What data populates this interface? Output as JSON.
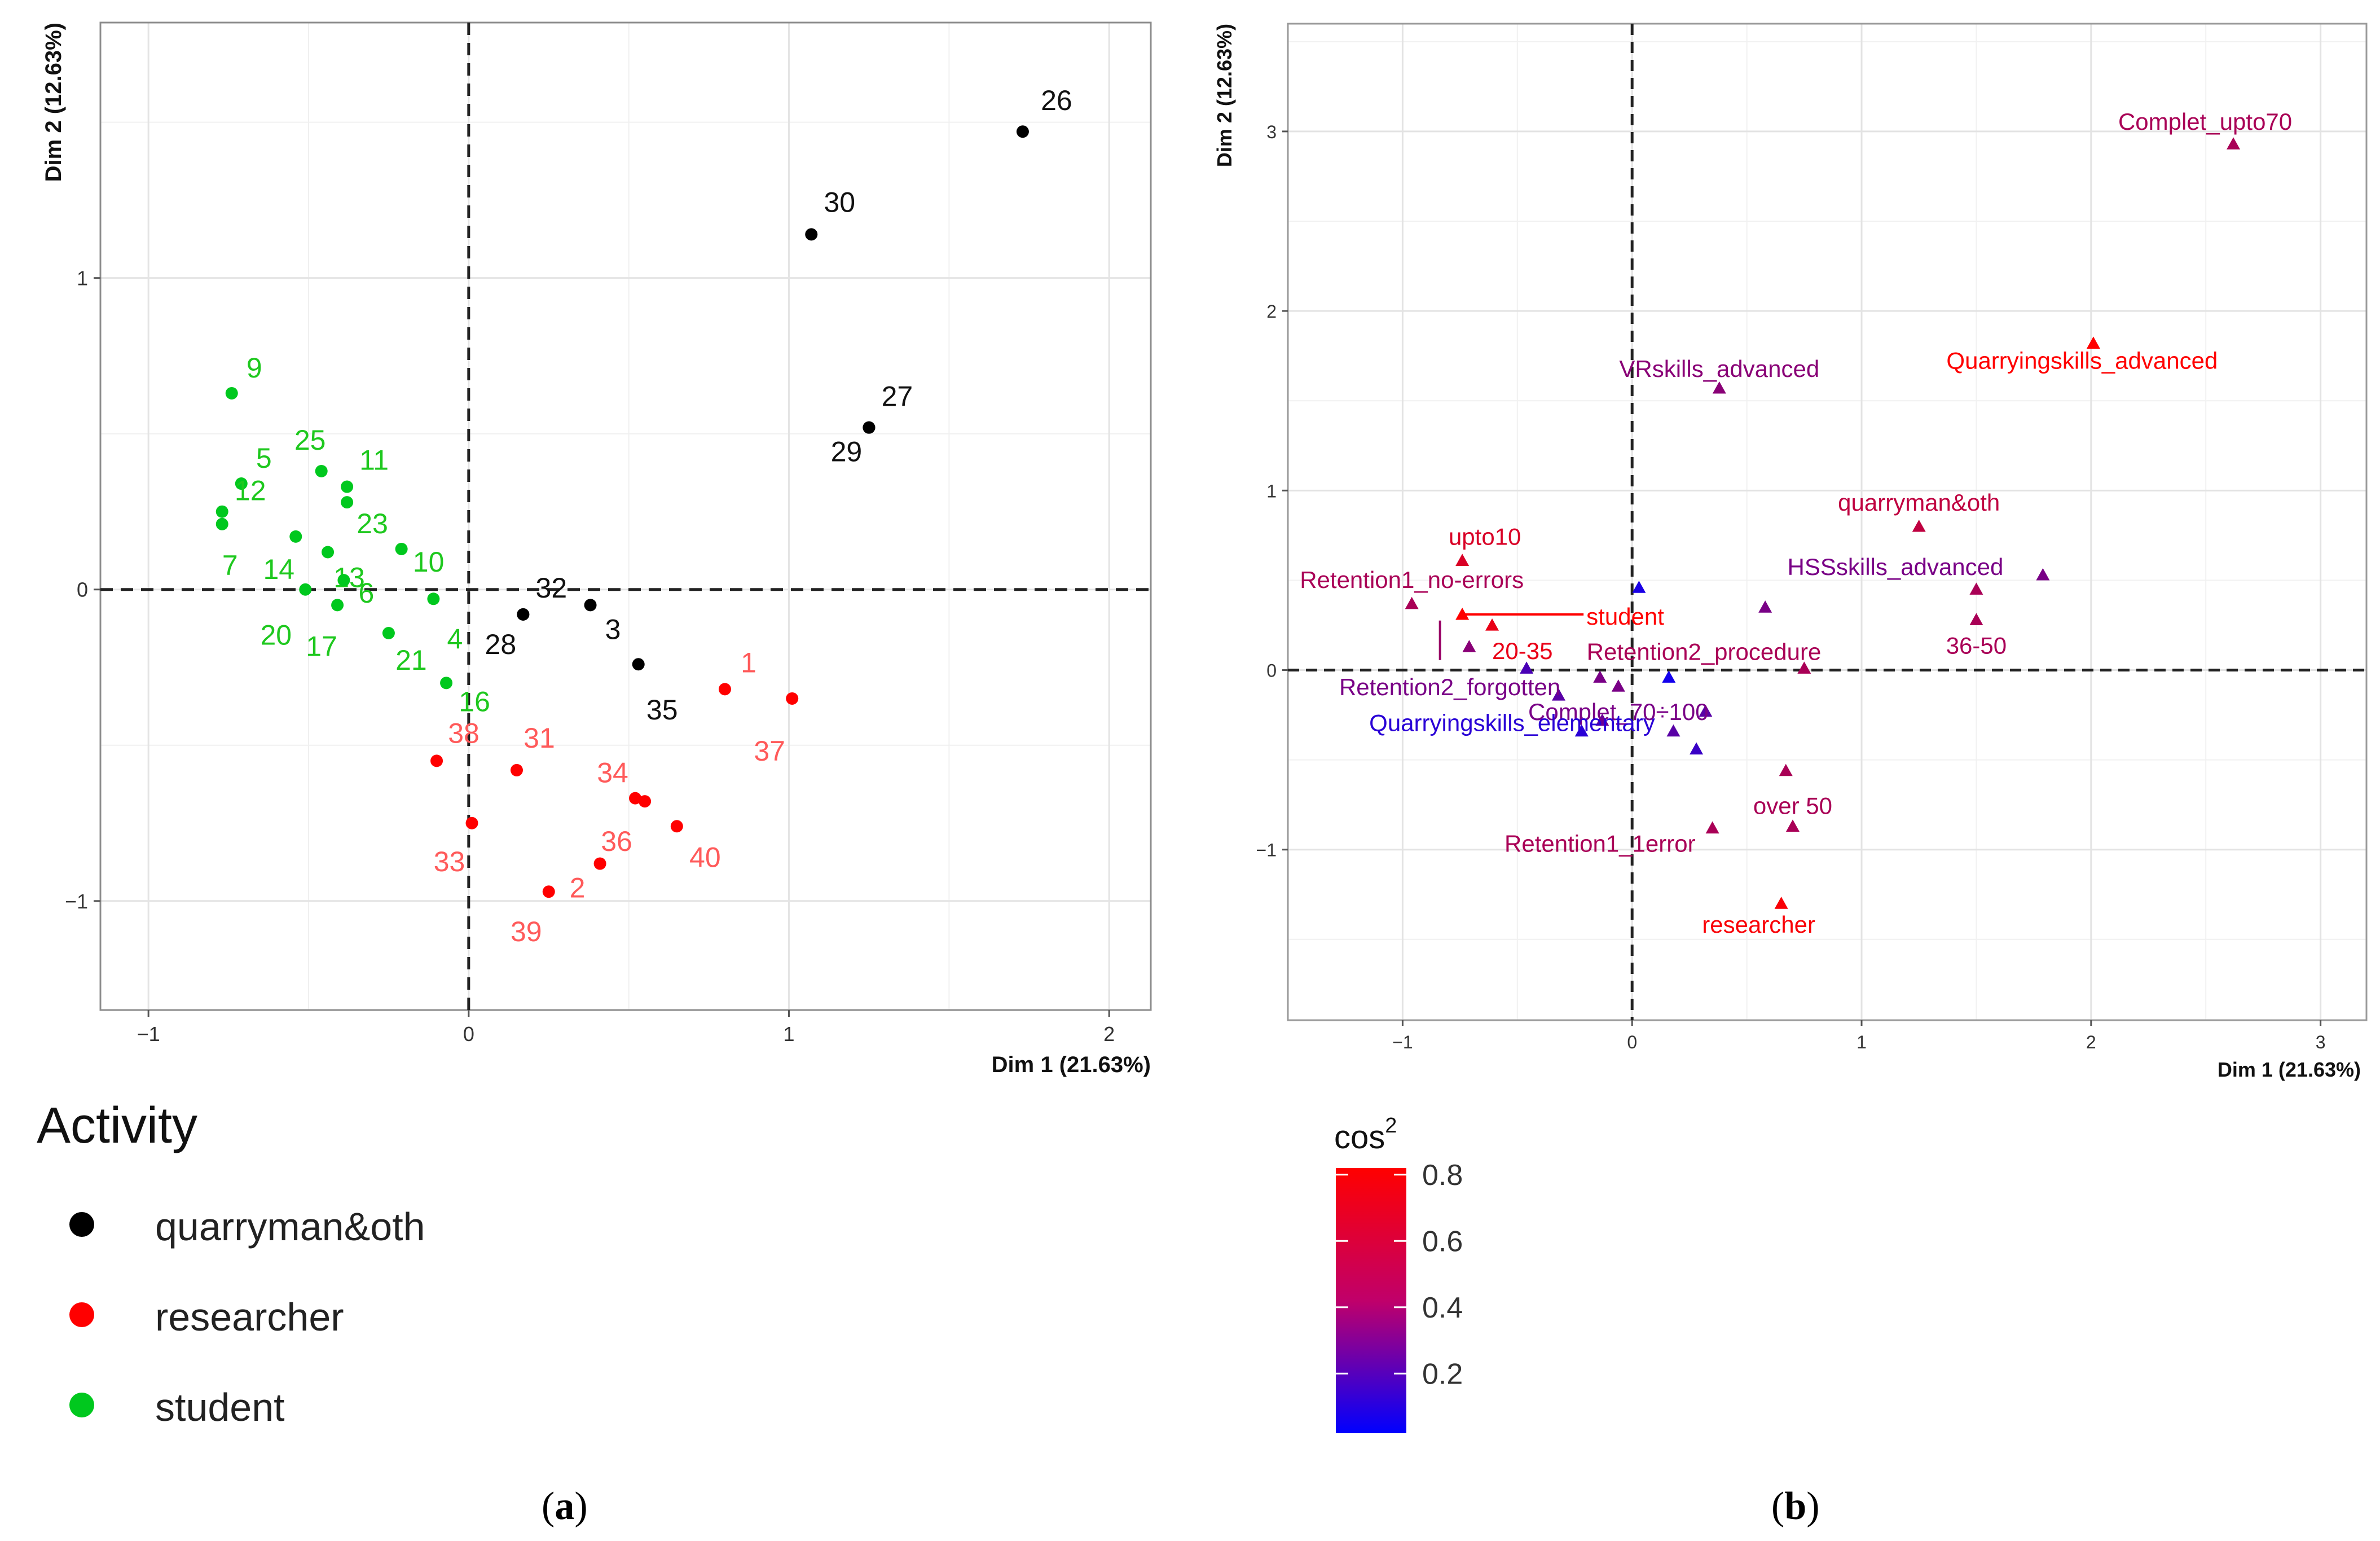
{
  "chart_data": [
    {
      "type": "scatter",
      "panel_label": "a",
      "xlabel": "Dim 1 (21.63%)",
      "ylabel": "Dim 2 (12.63%)",
      "xlim": [
        -1.15,
        2.13
      ],
      "ylim": [
        -1.35,
        1.82
      ],
      "x_ticks": [
        -1,
        0,
        1,
        2
      ],
      "y_ticks": [
        -1,
        0,
        1
      ],
      "grid": true,
      "legend_title": "Activity",
      "series": [
        {
          "name": "quarryman&oth",
          "color": "#000000",
          "points": [
            {
              "label": "26",
              "x": 1.73,
              "y": 1.47
            },
            {
              "label": "30",
              "x": 1.07,
              "y": 1.14
            },
            {
              "label": "27",
              "x": 1.25,
              "y": 0.52
            },
            {
              "label": "29",
              "x": 1.25,
              "y": 0.52
            },
            {
              "label": "32",
              "x": 0.17,
              "y": -0.08
            },
            {
              "label": "28",
              "x": 0.17,
              "y": -0.08
            },
            {
              "label": "3",
              "x": 0.38,
              "y": -0.05
            },
            {
              "label": "35",
              "x": 0.53,
              "y": -0.24
            }
          ]
        },
        {
          "name": "researcher",
          "color": "#ff0000",
          "points": [
            {
              "label": "1",
              "x": 0.8,
              "y": -0.32
            },
            {
              "label": "37",
              "x": 1.01,
              "y": -0.35
            },
            {
              "label": "38",
              "x": -0.1,
              "y": -0.55
            },
            {
              "label": "31",
              "x": 0.15,
              "y": -0.58
            },
            {
              "label": "34",
              "x": 0.52,
              "y": -0.67
            },
            {
              "label": "36",
              "x": 0.55,
              "y": -0.68
            },
            {
              "label": "40",
              "x": 0.65,
              "y": -0.76
            },
            {
              "label": "33",
              "x": 0.01,
              "y": -0.75
            },
            {
              "label": "2",
              "x": 0.41,
              "y": -0.88
            },
            {
              "label": "39",
              "x": 0.25,
              "y": -0.97
            }
          ]
        },
        {
          "name": "student",
          "color": "#00c81e",
          "points": [
            {
              "label": "9",
              "x": -0.74,
              "y": 0.63
            },
            {
              "label": "5",
              "x": -0.71,
              "y": 0.34
            },
            {
              "label": "25",
              "x": -0.46,
              "y": 0.38
            },
            {
              "label": "11",
              "x": -0.38,
              "y": 0.33
            },
            {
              "label": "12",
              "x": -0.77,
              "y": 0.25
            },
            {
              "label": "7",
              "x": -0.77,
              "y": 0.21
            },
            {
              "label": "23",
              "x": -0.38,
              "y": 0.28
            },
            {
              "label": "10",
              "x": -0.21,
              "y": 0.13
            },
            {
              "label": "14",
              "x": -0.54,
              "y": 0.17
            },
            {
              "label": "13",
              "x": -0.44,
              "y": 0.12
            },
            {
              "label": "20",
              "x": -0.51,
              "y": 0.0
            },
            {
              "label": "6",
              "x": -0.39,
              "y": 0.03
            },
            {
              "label": "17",
              "x": -0.41,
              "y": -0.05
            },
            {
              "label": "4",
              "x": -0.11,
              "y": -0.03
            },
            {
              "label": "21",
              "x": -0.25,
              "y": -0.14
            },
            {
              "label": "16",
              "x": -0.07,
              "y": -0.3
            }
          ]
        }
      ]
    },
    {
      "type": "scatter",
      "panel_label": "b",
      "xlabel": "Dim 1 (21.63%)",
      "ylabel": "Dim 2 (12.63%)",
      "xlim": [
        -1.5,
        3.2
      ],
      "ylim": [
        -1.95,
        3.6
      ],
      "x_ticks": [
        -1,
        0,
        1,
        2,
        3
      ],
      "y_ticks": [
        -1,
        0,
        1,
        2,
        3
      ],
      "grid": true,
      "legend_title": "cos",
      "legend_title_sup": "2",
      "colorbar_ticks": [
        "0.8",
        "0.6",
        "0.4",
        "0.2"
      ],
      "colorbar_range": [
        0.02,
        0.82
      ],
      "points": [
        {
          "label": "Complet_upto70",
          "x": 2.62,
          "y": 2.93,
          "cos2": 0.55
        },
        {
          "label": "Quarryingskills_advanced",
          "x": 2.01,
          "y": 1.82,
          "cos2": 0.82
        },
        {
          "label": "VRskills_advanced",
          "x": 0.38,
          "y": 1.57,
          "cos2": 0.45
        },
        {
          "label": "quarryman&oth",
          "x": 1.25,
          "y": 0.8,
          "cos2": 0.62
        },
        {
          "label": "HSSskills_advanced",
          "x": 1.79,
          "y": 0.53,
          "cos2": 0.4
        },
        {
          "label": "upto10",
          "x": -0.74,
          "y": 0.61,
          "cos2": 0.7
        },
        {
          "label": "Retention1_no-errors",
          "x": -0.96,
          "y": 0.37,
          "cos2": 0.55
        },
        {
          "label": "student",
          "x": -0.74,
          "y": 0.31,
          "cos2": 0.82
        },
        {
          "label": "20-35",
          "x": -0.61,
          "y": 0.25,
          "cos2": 0.75
        },
        {
          "label": "36-50",
          "x": 1.5,
          "y": 0.28,
          "cos2": 0.55
        },
        {
          "label": "Retention2_procedure",
          "x": 0.75,
          "y": 0.01,
          "cos2": 0.55
        },
        {
          "label": "Retention2_forgotten",
          "x": -0.14,
          "y": -0.04,
          "cos2": 0.4
        },
        {
          "label": "Complet_70÷100",
          "x": -0.06,
          "y": -0.09,
          "cos2": 0.4
        },
        {
          "label": "Quarryingskills_elementary",
          "x": -0.22,
          "y": -0.34,
          "cos2": 0.15
        },
        {
          "label": "over 50",
          "x": 0.7,
          "y": -0.87,
          "cos2": 0.55
        },
        {
          "label": "Retention1_1error",
          "x": 0.35,
          "y": -0.88,
          "cos2": 0.55
        },
        {
          "label": "researcher",
          "x": 0.65,
          "y": -1.3,
          "cos2": 0.8
        }
      ],
      "unlabeled_points": [
        {
          "x": -0.71,
          "y": 0.13,
          "cos2": 0.45
        },
        {
          "x": 0.03,
          "y": 0.46,
          "cos2": 0.1
        },
        {
          "x": 0.58,
          "y": 0.35,
          "cos2": 0.4
        },
        {
          "x": 1.5,
          "y": 0.45,
          "cos2": 0.55
        },
        {
          "x": -0.46,
          "y": 0.01,
          "cos2": 0.25
        },
        {
          "x": 0.16,
          "y": -0.04,
          "cos2": 0.08
        },
        {
          "x": -0.32,
          "y": -0.14,
          "cos2": 0.3
        },
        {
          "x": -0.13,
          "y": -0.28,
          "cos2": 0.35
        },
        {
          "x": 0.32,
          "y": -0.23,
          "cos2": 0.3
        },
        {
          "x": 0.18,
          "y": -0.34,
          "cos2": 0.3
        },
        {
          "x": 0.28,
          "y": -0.44,
          "cos2": 0.2
        },
        {
          "x": 0.67,
          "y": -0.56,
          "cos2": 0.55
        }
      ]
    }
  ],
  "captions": {
    "a_prefix": "(",
    "a_letter": "a",
    "a_suffix": ")",
    "b_prefix": "(",
    "b_letter": "b",
    "b_suffix": ")"
  }
}
